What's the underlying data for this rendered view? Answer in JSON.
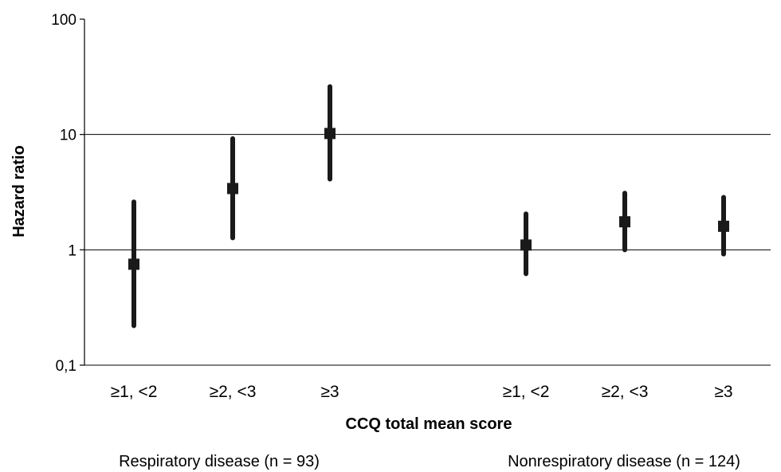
{
  "chart_data": {
    "type": "scatter",
    "subtype": "point-with-error-bars",
    "xlabel": "CCQ total mean score",
    "ylabel": "Hazard ratio",
    "yscale": "log",
    "ylim": [
      0.1,
      100
    ],
    "yticks": [
      {
        "value": 0.1,
        "label": "0,1"
      },
      {
        "value": 1,
        "label": "1"
      },
      {
        "value": 10,
        "label": "10"
      },
      {
        "value": 100,
        "label": "100"
      }
    ],
    "grid": {
      "horizontal": true,
      "vertical": false
    },
    "groups": [
      {
        "label": "Respiratory disease (n = 93)",
        "points": [
          {
            "category": "≥1, <2",
            "hr": 0.75,
            "lower": 0.22,
            "upper": 2.6
          },
          {
            "category": "≥2, <3",
            "hr": 3.4,
            "lower": 1.27,
            "upper": 9.2
          },
          {
            "category": "≥3",
            "hr": 10.2,
            "lower": 4.1,
            "upper": 26
          }
        ]
      },
      {
        "label": "Nonrespiratory disease (n = 124)",
        "points": [
          {
            "category": "≥1, <2",
            "hr": 1.1,
            "lower": 0.62,
            "upper": 2.05
          },
          {
            "category": "≥2, <3",
            "hr": 1.75,
            "lower": 1.0,
            "upper": 3.1
          },
          {
            "category": "≥3",
            "hr": 1.6,
            "lower": 0.92,
            "upper": 2.85
          }
        ]
      }
    ],
    "colors": {
      "marker": "#1a1a1a",
      "grid": "#000000",
      "axis": "#000000"
    }
  }
}
